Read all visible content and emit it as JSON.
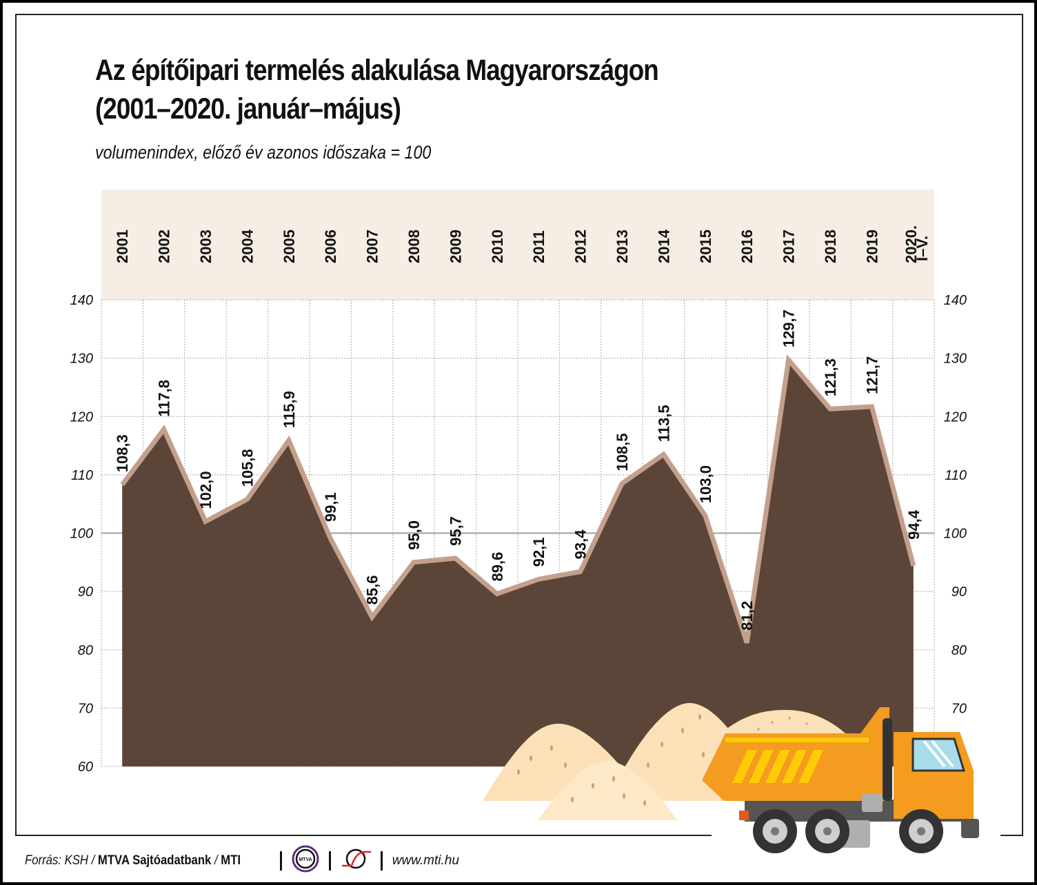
{
  "header": {
    "title_line1": "Az építőipari termelés alakulása Magyarországon",
    "title_line2": "(2001–2020. január–május)",
    "subtitle": "volumenindex, előző év azonos időszaka = 100"
  },
  "chart_data": {
    "type": "area",
    "title": "Az építőipari termelés alakulása Magyarországon (2001–2020. január–május)",
    "subtitle": "volumenindex, előző év azonos időszaka = 100",
    "xlabel": "",
    "ylabel": "",
    "categories": [
      "2001",
      "2002",
      "2003",
      "2004",
      "2005",
      "2006",
      "2007",
      "2008",
      "2009",
      "2010",
      "2011",
      "2012",
      "2013",
      "2014",
      "2015",
      "2016",
      "2017",
      "2018",
      "2019",
      "2020. I–V."
    ],
    "values": [
      108.3,
      117.8,
      102.0,
      105.8,
      115.9,
      99.1,
      85.6,
      95.0,
      95.7,
      89.6,
      92.1,
      93.4,
      108.5,
      113.5,
      103.0,
      81.2,
      129.7,
      121.3,
      121.7,
      94.4
    ],
    "value_labels": [
      "108,3",
      "117,8",
      "102,0",
      "105,8",
      "115,9",
      "99,1",
      "85,6",
      "95,0",
      "95,7",
      "89,6",
      "92,1",
      "93,4",
      "108,5",
      "113,5",
      "103,0",
      "81,2",
      "129,7",
      "121,3",
      "121,7",
      "94,4"
    ],
    "ylim": [
      60,
      140
    ],
    "yticks": [
      140,
      130,
      120,
      110,
      100,
      90,
      80,
      70,
      60
    ],
    "reference_line": 100,
    "grid": true,
    "axis_position": "both-left-and-right",
    "colors": {
      "area": "#5A4538",
      "line": "#C4A08C",
      "header_band": "#F6EEE5",
      "ref_line": "#BDBDBD"
    }
  },
  "x_axis": {
    "labels": [
      "2001",
      "2002",
      "2003",
      "2004",
      "2005",
      "2006",
      "2007",
      "2008",
      "2009",
      "2010",
      "2011",
      "2012",
      "2013",
      "2014",
      "2015",
      "2016",
      "2017",
      "2018",
      "2019",
      "2020."
    ],
    "last_label_sub": "I–V."
  },
  "y_axis": {
    "ticks": [
      "140",
      "130",
      "120",
      "110",
      "100",
      "90",
      "80",
      "70",
      "60"
    ],
    "right_ticks": [
      "140",
      "130",
      "120",
      "110",
      "100",
      "90",
      "80",
      "70"
    ]
  },
  "footer": {
    "source_prefix": "Forrás: KSH / ",
    "source_bold": "MTVA Sajtóadatbank",
    "source_mid": " / ",
    "source_bold2": "MTI",
    "mtva_logo_text": "MTVA",
    "url": "www.mti.hu"
  },
  "colors": {
    "mtva_ring": "#5B2D82",
    "mti_red": "#E2231A",
    "truck_orange": "#F39C1F",
    "truck_yellow": "#FFCB05",
    "sand": "#FCE1B8",
    "sand_light": "#FDE8C7"
  }
}
